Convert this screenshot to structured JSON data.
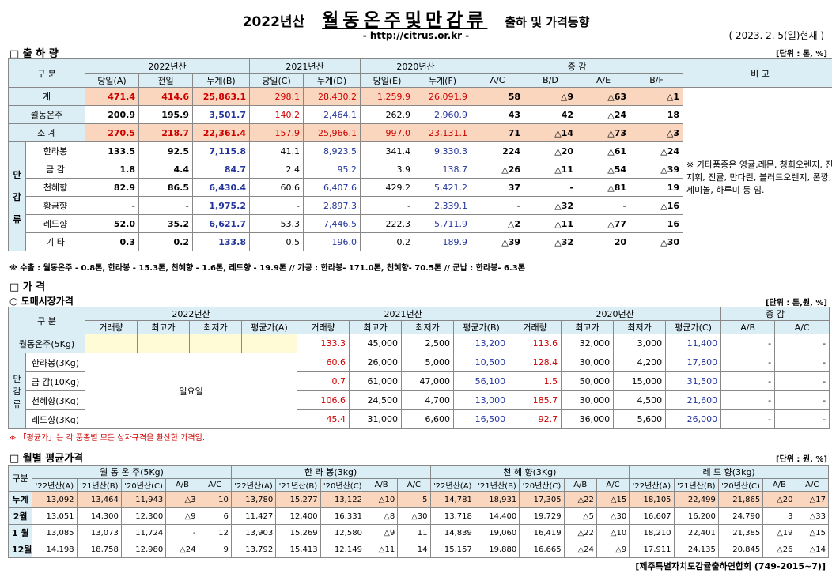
{
  "header": {
    "year": "2022년산",
    "title": "월동온주및만감류",
    "suffix": "출하 및 가격동향",
    "url": "- http://citrus.or.kr -",
    "date": "( 2023. 2. 5(일)현재 )"
  },
  "ship": {
    "section": "□ 출 하 량",
    "unit": "[단위 : 톤, %]",
    "h_gubun": "구 분",
    "h_2022": "2022년산",
    "h_2021": "2021년산",
    "h_2020": "2020년산",
    "h_change": "증 감",
    "h_remark": "비 고",
    "sub": [
      "당일(A)",
      "전일",
      "누계(B)",
      "당일(C)",
      "누계(D)",
      "당일(E)",
      "누계(F)",
      "A/C",
      "B/D",
      "A/E",
      "B/F"
    ],
    "side_label": [
      "만",
      "감",
      "류"
    ],
    "rows": [
      {
        "name": "계",
        "v": [
          "471.4",
          "414.6",
          "25,863.1",
          "298.1",
          "28,430.2",
          "1,259.9",
          "26,091.9",
          "58",
          "△9",
          "△63",
          "△1"
        ]
      },
      {
        "name": "월동온주",
        "v": [
          "200.9",
          "195.9",
          "3,501.7",
          "140.2",
          "2,464.1",
          "262.9",
          "2,960.9",
          "43",
          "42",
          "△24",
          "18"
        ]
      },
      {
        "name": "소 계",
        "v": [
          "270.5",
          "218.7",
          "22,361.4",
          "157.9",
          "25,966.1",
          "997.0",
          "23,131.1",
          "71",
          "△14",
          "△73",
          "△3"
        ]
      },
      {
        "name": "한라봉",
        "v": [
          "133.5",
          "92.5",
          "7,115.8",
          "41.1",
          "8,923.5",
          "341.4",
          "9,330.3",
          "224",
          "△20",
          "△61",
          "△24"
        ]
      },
      {
        "name": "금 감",
        "v": [
          "1.8",
          "4.4",
          "84.7",
          "2.4",
          "95.2",
          "3.9",
          "138.7",
          "△26",
          "△11",
          "△54",
          "△39"
        ]
      },
      {
        "name": "천혜향",
        "v": [
          "82.9",
          "86.5",
          "6,430.4",
          "60.6",
          "6,407.6",
          "429.2",
          "5,421.2",
          "37",
          "-",
          "△81",
          "19"
        ]
      },
      {
        "name": "황금향",
        "v": [
          "-",
          "-",
          "1,975.2",
          "-",
          "2,897.3",
          "-",
          "2,339.1",
          "-",
          "△32",
          "-",
          "△16"
        ]
      },
      {
        "name": "레드향",
        "v": [
          "52.0",
          "35.2",
          "6,621.7",
          "53.3",
          "7,446.5",
          "222.3",
          "5,711.9",
          "△2",
          "△11",
          "△77",
          "16"
        ]
      },
      {
        "name": "기 타",
        "v": [
          "0.3",
          "0.2",
          "133.8",
          "0.5",
          "196.0",
          "0.2",
          "189.9",
          "△39",
          "△32",
          "20",
          "△30"
        ]
      }
    ],
    "remark": "※ 기타품종은 영귤,레몬, 청희오렌지, 진지휘, 진귤, 만다린, 블러드오렌지, 폰깡,세미놀, 하루미 등 임.",
    "note": "※ 수출 : 월동온주 - 0.8톤, 한라봉 - 15.3톤, 천혜향 - 1.6톤, 레드향 - 19.9톤 // 가공 : 한라봉- 171.0톤, 천혜향- 70.5톤 // 군납 : 한라봉- 6.3톤"
  },
  "price": {
    "section": "□ 가 격",
    "subsection": "○ 도매시장가격",
    "unit": "[단위 : 톤,원, %]",
    "h_gubun": "구 분",
    "h_2022": "2022년산",
    "h_2021": "2021년산",
    "h_2020": "2020년산",
    "h_change": "증 감",
    "sub": [
      "거래량",
      "최고가",
      "최저가",
      "평균가(A)",
      "거래량",
      "최고가",
      "최저가",
      "평균가(B)",
      "거래량",
      "최고가",
      "최저가",
      "평균가(C)",
      "A/B",
      "A/C"
    ],
    "side_label": [
      "만",
      "감",
      "류"
    ],
    "holiday": "일요일",
    "rows": [
      {
        "name": "월동온주(5Kg)",
        "v": [
          "133.3",
          "45,000",
          "2,500",
          "13,200",
          "113.6",
          "32,000",
          "3,000",
          "11,400",
          "-",
          "-"
        ]
      },
      {
        "name": "한라봉(3Kg)",
        "v": [
          "60.6",
          "26,000",
          "5,000",
          "10,500",
          "128.4",
          "30,000",
          "4,200",
          "17,800",
          "-",
          "-"
        ]
      },
      {
        "name": "금 감(10Kg)",
        "v": [
          "0.7",
          "61,000",
          "47,000",
          "56,100",
          "1.5",
          "50,000",
          "15,000",
          "31,500",
          "-",
          "-"
        ]
      },
      {
        "name": "천혜향(3Kg)",
        "v": [
          "106.6",
          "24,500",
          "4,700",
          "13,000",
          "185.7",
          "30,000",
          "4,500",
          "21,600",
          "-",
          "-"
        ]
      },
      {
        "name": "레드향(3Kg)",
        "v": [
          "45.4",
          "31,000",
          "6,600",
          "16,500",
          "92.7",
          "36,000",
          "5,600",
          "26,000",
          "-",
          "-"
        ]
      }
    ],
    "note": "※ 「평균가」는 각 품종별 모든 상자규격을 환산한 가격임."
  },
  "monthly": {
    "section": "□ 월별 평균가격",
    "unit": "[단위 : 원, %]",
    "h_gubun": "구분",
    "groups": [
      "월 동 온 주(5Kg)",
      "한 라 봉(3kg)",
      "천 혜 향(3Kg)",
      "레 드 향(3kg)"
    ],
    "sub": [
      "'22년산(A)",
      "'21년산(B)",
      "'20년산(C)",
      "A/B",
      "A/C"
    ],
    "rows": [
      {
        "name": "누계",
        "v": [
          "13,092",
          "13,464",
          "11,943",
          "△3",
          "10",
          "13,780",
          "15,277",
          "13,122",
          "△10",
          "5",
          "14,781",
          "18,931",
          "17,305",
          "△22",
          "△15",
          "18,105",
          "22,499",
          "21,865",
          "△20",
          "△17"
        ]
      },
      {
        "name": "2월",
        "v": [
          "13,051",
          "14,300",
          "12,300",
          "△9",
          "6",
          "11,427",
          "12,400",
          "16,331",
          "△8",
          "△30",
          "13,718",
          "14,400",
          "19,729",
          "△5",
          "△30",
          "16,607",
          "16,200",
          "24,790",
          "3",
          "△33"
        ]
      },
      {
        "name": "1 월",
        "v": [
          "13,085",
          "13,073",
          "11,724",
          "-",
          "12",
          "13,903",
          "15,269",
          "12,580",
          "△9",
          "11",
          "14,839",
          "19,060",
          "16,419",
          "△22",
          "△10",
          "18,210",
          "22,401",
          "21,385",
          "△19",
          "△15"
        ]
      },
      {
        "name": "12월",
        "v": [
          "14,198",
          "18,758",
          "12,980",
          "△24",
          "9",
          "13,792",
          "15,413",
          "12,149",
          "△11",
          "14",
          "15,157",
          "19,880",
          "16,665",
          "△24",
          "△9",
          "17,911",
          "24,135",
          "20,845",
          "△26",
          "△14"
        ]
      }
    ]
  },
  "footer": "[제주특별자치도감귤출하연합회 (749-2015~7)]"
}
